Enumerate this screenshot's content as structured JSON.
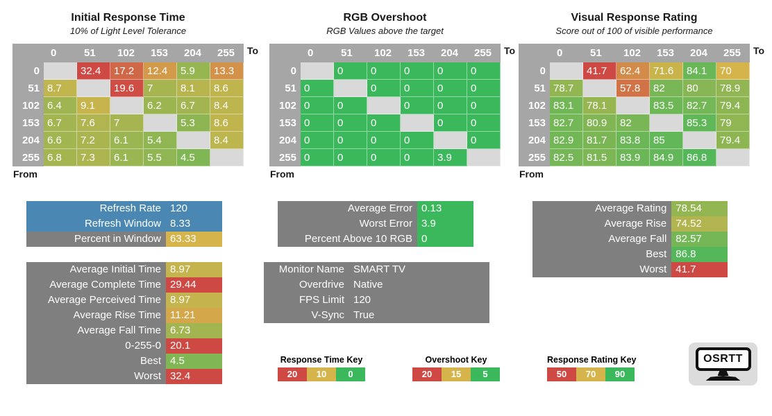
{
  "colors": {
    "panel_gray": "#7F7F7F",
    "header_gray": "#A6A6A6",
    "blank_cell": "#D9D9D9",
    "blue": "#4A87B2",
    "red": "#CE4944",
    "gold": "#D5B44B",
    "green": "#3CB85C",
    "logo_bg": "#DCDCDC"
  },
  "axis": {
    "to_label": "To",
    "from_label": "From",
    "levels": [
      "0",
      "51",
      "102",
      "153",
      "204",
      "255"
    ]
  },
  "tables": [
    {
      "id": "initial-response-time",
      "title": "Initial Response Time",
      "subtitle": "10% of Light Level Tolerance",
      "scale": [
        [
          0,
          "#3CB85C"
        ],
        [
          10,
          "#D5B44B"
        ],
        [
          20,
          "#CE4944"
        ]
      ],
      "rows": [
        [
          null,
          32.4,
          17.2,
          12.4,
          5.9,
          13.3
        ],
        [
          8.7,
          null,
          19.6,
          7,
          8.1,
          8.6
        ],
        [
          6.4,
          9.1,
          null,
          6.2,
          6.7,
          8.4
        ],
        [
          6.7,
          7.6,
          7,
          null,
          5.3,
          8.6
        ],
        [
          6.6,
          7.2,
          6.1,
          5.4,
          null,
          8.4
        ],
        [
          6.8,
          7.3,
          6.1,
          5.5,
          4.5,
          null
        ]
      ]
    },
    {
      "id": "rgb-overshoot",
      "title": "RGB Overshoot",
      "subtitle": "RGB Values above the target",
      "scale": [
        [
          5,
          "#3CB85C"
        ],
        [
          15,
          "#D5B44B"
        ],
        [
          20,
          "#CE4944"
        ]
      ],
      "rows": [
        [
          null,
          0,
          0,
          0,
          0,
          0
        ],
        [
          0,
          null,
          0,
          0,
          0,
          0
        ],
        [
          0,
          0,
          null,
          0,
          0,
          0
        ],
        [
          0,
          0,
          0,
          null,
          0,
          0
        ],
        [
          0,
          0,
          0,
          0,
          null,
          0
        ],
        [
          0,
          0,
          0,
          0,
          3.9,
          null
        ]
      ]
    },
    {
      "id": "visual-response-rating",
      "title": "Visual Response Rating",
      "subtitle": "Score out of 100 of visible performance",
      "scale": [
        [
          50,
          "#CE4944"
        ],
        [
          70,
          "#D5B44B"
        ],
        [
          90,
          "#3CB85C"
        ]
      ],
      "rows": [
        [
          null,
          41.7,
          62.4,
          71.6,
          84.1,
          70
        ],
        [
          78.7,
          null,
          57.8,
          82,
          80,
          78.9
        ],
        [
          83.1,
          78.1,
          null,
          83.5,
          82.7,
          79.4
        ],
        [
          82.7,
          80.9,
          82,
          null,
          85.3,
          79
        ],
        [
          82.9,
          81.7,
          83.8,
          85,
          null,
          79.4
        ],
        [
          82.5,
          81.5,
          83.9,
          84.9,
          86.8,
          null
        ]
      ]
    }
  ],
  "panels": [
    {
      "id": "refresh-panel",
      "rows": [
        {
          "label": "Refresh Rate",
          "value": "120",
          "row_bg": "#4A87B2"
        },
        {
          "label": "Refresh Window",
          "value": "8.33",
          "row_bg": "#4A87B2"
        },
        {
          "label": "Percent in Window",
          "value": "63.33",
          "value_bg": "#D5B44B"
        }
      ]
    },
    {
      "id": "time-summary-panel",
      "rows": [
        {
          "label": "Average Initial Time",
          "value": "8.97",
          "value_bg": "#C5B44D"
        },
        {
          "label": "Average Complete Time",
          "value": "29.44",
          "value_bg": "#CE4944"
        },
        {
          "label": "Average Perceived Time",
          "value": "8.97",
          "value_bg": "#C5B44D"
        },
        {
          "label": "Average Rise Time",
          "value": "11.21",
          "value_bg": "#D4A74A"
        },
        {
          "label": "Average Fall Time",
          "value": "6.73",
          "value_bg": "#A3B551"
        },
        {
          "label": "0-255-0",
          "value": "20.1",
          "value_bg": "#CE4944"
        },
        {
          "label": "Best",
          "value": "4.5",
          "value_bg": "#81B654"
        },
        {
          "label": "Worst",
          "value": "32.4",
          "value_bg": "#CE4944"
        }
      ]
    },
    {
      "id": "error-summary-panel",
      "rows": [
        {
          "label": "Average Error",
          "value": "0.13",
          "value_bg": "#3CB85C"
        },
        {
          "label": "Worst Error",
          "value": "3.9",
          "value_bg": "#3CB85C"
        },
        {
          "label": "Percent Above 10 RGB",
          "value": "0",
          "value_bg": "#3CB85C"
        }
      ]
    },
    {
      "id": "monitor-info-panel",
      "rows": [
        {
          "label": "Monitor Name",
          "value": "SMART TV"
        },
        {
          "label": "Overdrive",
          "value": "Native"
        },
        {
          "label": "FPS Limit",
          "value": "120"
        },
        {
          "label": "V-Sync",
          "value": "True"
        }
      ]
    },
    {
      "id": "rating-summary-panel",
      "rows": [
        {
          "label": "Average Rating",
          "value": "78.54",
          "value_bg": "#94B652"
        },
        {
          "label": "Average Rise",
          "value": "74.52",
          "value_bg": "#B2B54F"
        },
        {
          "label": "Average Fall",
          "value": "82.57",
          "value_bg": "#75B756"
        },
        {
          "label": "Best",
          "value": "86.8",
          "value_bg": "#54B759"
        },
        {
          "label": "Worst",
          "value": "41.7",
          "value_bg": "#CE4944"
        }
      ]
    }
  ],
  "keys": [
    {
      "title": "Response Time Key",
      "cells": [
        {
          "label": "20",
          "color": "#CE4944"
        },
        {
          "label": "10",
          "color": "#D5B44B"
        },
        {
          "label": "0",
          "color": "#3CB85C"
        }
      ]
    },
    {
      "title": "Overshoot Key",
      "cells": [
        {
          "label": "20",
          "color": "#CE4944"
        },
        {
          "label": "15",
          "color": "#D5B44B"
        },
        {
          "label": "5",
          "color": "#3CB85C"
        }
      ]
    },
    {
      "title": "Response Rating Key",
      "cells": [
        {
          "label": "50",
          "color": "#CE4944"
        },
        {
          "label": "70",
          "color": "#D5B44B"
        },
        {
          "label": "90",
          "color": "#3CB85C"
        }
      ]
    }
  ],
  "logo": {
    "text": "OSRTT"
  }
}
